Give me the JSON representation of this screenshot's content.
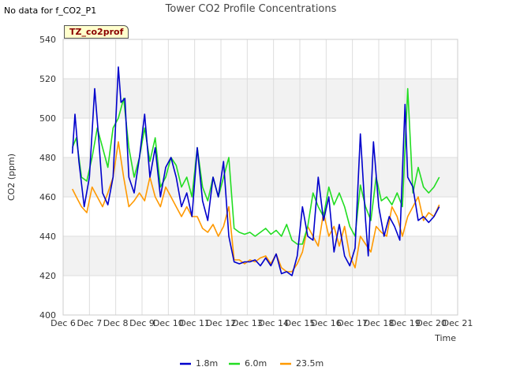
{
  "no_data_note": "No data for f_CO2_P1",
  "site_tag": "TZ_co2prof",
  "colors": {
    "s1": "#0000cc",
    "s2": "#22dd22",
    "s3": "#ff9900",
    "band": "#f2f2f2",
    "grid": "#dddddd"
  },
  "chart_data": {
    "type": "line",
    "title": "Tower CO2 Profile Concentrations",
    "xlabel": "Time",
    "ylabel": "CO2 (ppm)",
    "xlim": [
      6,
      21
    ],
    "ylim": [
      400,
      540
    ],
    "x_ticks": [
      6,
      7,
      8,
      9,
      10,
      11,
      12,
      13,
      14,
      15,
      16,
      17,
      18,
      19,
      20,
      21
    ],
    "x_tick_labels": [
      "Dec 6",
      "Dec 7",
      "Dec 8",
      "Dec 9",
      "Dec 10",
      "Dec 11",
      "Dec 12",
      "Dec 13",
      "Dec 14",
      "Dec 15",
      "Dec 16",
      "Dec 17",
      "Dec 18",
      "Dec 19",
      "Dec 20",
      "Dec 21"
    ],
    "y_ticks": [
      400,
      420,
      440,
      460,
      480,
      500,
      520,
      540
    ],
    "legend_position": "bottom",
    "series": [
      {
        "name": "1.8m",
        "color_key": "s1",
        "x": [
          6.35,
          6.45,
          6.6,
          6.8,
          7.0,
          7.2,
          7.35,
          7.5,
          7.7,
          7.9,
          8.1,
          8.2,
          8.35,
          8.5,
          8.7,
          8.9,
          9.1,
          9.3,
          9.5,
          9.7,
          9.9,
          10.1,
          10.3,
          10.5,
          10.7,
          10.9,
          11.1,
          11.3,
          11.5,
          11.7,
          11.9,
          12.1,
          12.3,
          12.5,
          12.7,
          12.9,
          13.1,
          13.3,
          13.5,
          13.7,
          13.9,
          14.1,
          14.3,
          14.5,
          14.7,
          14.9,
          15.1,
          15.3,
          15.5,
          15.7,
          15.9,
          16.1,
          16.3,
          16.5,
          16.7,
          16.9,
          17.1,
          17.3,
          17.5,
          17.6,
          17.8,
          18.0,
          18.2,
          18.4,
          18.6,
          18.8,
          19.0,
          19.1,
          19.3,
          19.5,
          19.7,
          19.9,
          20.1,
          20.3
        ],
        "values": [
          482,
          502,
          478,
          455,
          470,
          515,
          490,
          462,
          456,
          470,
          526,
          508,
          510,
          470,
          462,
          480,
          502,
          470,
          485,
          460,
          475,
          480,
          470,
          455,
          462,
          450,
          485,
          458,
          448,
          470,
          460,
          478,
          440,
          427,
          426,
          427,
          427,
          428,
          425,
          429,
          425,
          431,
          421,
          422,
          420,
          430,
          455,
          440,
          438,
          470,
          448,
          460,
          432,
          446,
          430,
          425,
          434,
          492,
          448,
          430,
          488,
          455,
          440,
          450,
          445,
          438,
          507,
          470,
          465,
          448,
          450,
          447,
          450,
          455
        ]
      },
      {
        "name": "6.0m",
        "color_key": "s2",
        "x": [
          6.35,
          6.5,
          6.7,
          6.9,
          7.1,
          7.3,
          7.5,
          7.7,
          7.9,
          8.1,
          8.3,
          8.5,
          8.7,
          8.9,
          9.1,
          9.3,
          9.5,
          9.7,
          9.9,
          10.1,
          10.3,
          10.5,
          10.7,
          10.9,
          11.1,
          11.3,
          11.5,
          11.7,
          11.9,
          12.1,
          12.3,
          12.5,
          12.7,
          12.9,
          13.1,
          13.3,
          13.5,
          13.7,
          13.9,
          14.1,
          14.3,
          14.5,
          14.7,
          14.9,
          15.1,
          15.3,
          15.5,
          15.7,
          15.9,
          16.1,
          16.3,
          16.5,
          16.7,
          16.9,
          17.1,
          17.3,
          17.5,
          17.7,
          17.9,
          18.1,
          18.3,
          18.5,
          18.7,
          18.9,
          19.1,
          19.3,
          19.5,
          19.7,
          19.9,
          20.1,
          20.3
        ],
        "values": [
          485,
          490,
          470,
          468,
          480,
          495,
          485,
          475,
          495,
          500,
          510,
          485,
          470,
          480,
          495,
          478,
          490,
          465,
          470,
          480,
          476,
          465,
          470,
          460,
          485,
          465,
          458,
          470,
          460,
          470,
          480,
          444,
          442,
          441,
          442,
          440,
          442,
          444,
          441,
          443,
          440,
          446,
          438,
          436,
          436,
          445,
          462,
          455,
          450,
          465,
          456,
          462,
          455,
          445,
          440,
          466,
          455,
          448,
          470,
          458,
          460,
          456,
          462,
          455,
          515,
          462,
          475,
          465,
          462,
          465,
          470
        ]
      },
      {
        "name": "23.5m",
        "color_key": "s3",
        "x": [
          6.35,
          6.5,
          6.7,
          6.9,
          7.1,
          7.3,
          7.5,
          7.7,
          7.9,
          8.1,
          8.3,
          8.5,
          8.7,
          8.9,
          9.1,
          9.3,
          9.5,
          9.7,
          9.9,
          10.1,
          10.3,
          10.5,
          10.7,
          10.9,
          11.1,
          11.3,
          11.5,
          11.7,
          11.9,
          12.1,
          12.3,
          12.5,
          12.7,
          12.9,
          13.1,
          13.3,
          13.5,
          13.7,
          13.9,
          14.1,
          14.3,
          14.5,
          14.7,
          14.9,
          15.1,
          15.3,
          15.5,
          15.7,
          15.9,
          16.1,
          16.3,
          16.5,
          16.7,
          16.9,
          17.1,
          17.3,
          17.5,
          17.7,
          17.9,
          18.1,
          18.3,
          18.5,
          18.7,
          18.9,
          19.1,
          19.3,
          19.5,
          19.7,
          19.9,
          20.1,
          20.3
        ],
        "values": [
          464,
          460,
          455,
          452,
          465,
          460,
          455,
          462,
          470,
          488,
          470,
          455,
          458,
          462,
          458,
          470,
          460,
          455,
          465,
          460,
          455,
          450,
          455,
          450,
          450,
          444,
          442,
          446,
          440,
          445,
          455,
          428,
          428,
          426,
          428,
          427,
          429,
          430,
          426,
          431,
          424,
          422,
          422,
          426,
          432,
          445,
          440,
          435,
          452,
          440,
          445,
          435,
          445,
          430,
          424,
          440,
          436,
          432,
          445,
          442,
          440,
          455,
          450,
          440,
          450,
          455,
          460,
          448,
          452,
          450,
          456
        ]
      }
    ]
  }
}
